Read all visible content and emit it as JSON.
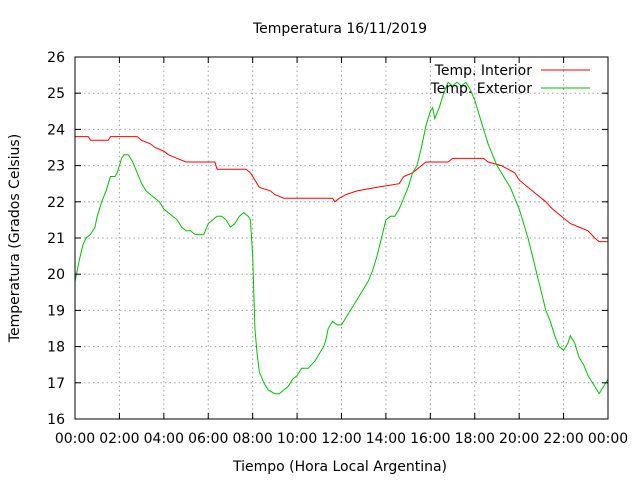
{
  "chart_data": {
    "type": "line",
    "title": "Temperatura 16/11/2019",
    "xlabel": "Tiempo (Hora Local Argentina)",
    "ylabel": "Temperatura (Grados Celsius)",
    "xlim": [
      0,
      24
    ],
    "ylim": [
      16,
      26
    ],
    "grid": true,
    "legend_position": "top-right",
    "x_ticks": [
      {
        "value": 0,
        "label": "00:00"
      },
      {
        "value": 2,
        "label": "02:00"
      },
      {
        "value": 4,
        "label": "04:00"
      },
      {
        "value": 6,
        "label": "06:00"
      },
      {
        "value": 8,
        "label": "08:00"
      },
      {
        "value": 10,
        "label": "10:00"
      },
      {
        "value": 12,
        "label": "12:00"
      },
      {
        "value": 14,
        "label": "14:00"
      },
      {
        "value": 16,
        "label": "16:00"
      },
      {
        "value": 18,
        "label": "18:00"
      },
      {
        "value": 20,
        "label": "20:00"
      },
      {
        "value": 22,
        "label": "22:00"
      },
      {
        "value": 24,
        "label": "00:00"
      }
    ],
    "y_ticks": [
      16,
      17,
      18,
      19,
      20,
      21,
      22,
      23,
      24,
      25,
      26
    ],
    "series": [
      {
        "name": "Temp. Interior",
        "color": "#ff0000",
        "points": [
          [
            0,
            23.8
          ],
          [
            0.6,
            23.8
          ],
          [
            0.7,
            23.7
          ],
          [
            1.5,
            23.7
          ],
          [
            1.6,
            23.8
          ],
          [
            2.8,
            23.8
          ],
          [
            3.0,
            23.7
          ],
          [
            3.4,
            23.6
          ],
          [
            3.6,
            23.5
          ],
          [
            4.0,
            23.4
          ],
          [
            4.2,
            23.3
          ],
          [
            4.6,
            23.2
          ],
          [
            5.0,
            23.1
          ],
          [
            6.3,
            23.1
          ],
          [
            6.4,
            22.9
          ],
          [
            7.7,
            22.9
          ],
          [
            7.9,
            22.8
          ],
          [
            8.1,
            22.6
          ],
          [
            8.3,
            22.4
          ],
          [
            8.8,
            22.3
          ],
          [
            9.0,
            22.2
          ],
          [
            9.4,
            22.1
          ],
          [
            11.6,
            22.1
          ],
          [
            11.7,
            22.0
          ],
          [
            11.9,
            22.1
          ],
          [
            12.2,
            22.2
          ],
          [
            12.7,
            22.3
          ],
          [
            13.6,
            22.4
          ],
          [
            14.6,
            22.5
          ],
          [
            14.8,
            22.7
          ],
          [
            15.2,
            22.8
          ],
          [
            15.6,
            23.0
          ],
          [
            15.8,
            23.1
          ],
          [
            16.8,
            23.1
          ],
          [
            17.0,
            23.2
          ],
          [
            18.4,
            23.2
          ],
          [
            18.6,
            23.1
          ],
          [
            19.2,
            23.0
          ],
          [
            19.5,
            22.9
          ],
          [
            19.8,
            22.8
          ],
          [
            20.0,
            22.6
          ],
          [
            20.4,
            22.4
          ],
          [
            20.8,
            22.2
          ],
          [
            21.2,
            22.0
          ],
          [
            21.5,
            21.8
          ],
          [
            21.9,
            21.6
          ],
          [
            22.3,
            21.4
          ],
          [
            22.7,
            21.3
          ],
          [
            23.1,
            21.2
          ],
          [
            23.4,
            21.0
          ],
          [
            23.6,
            20.9
          ],
          [
            24.0,
            20.9
          ]
        ]
      },
      {
        "name": "Temp. Exterior",
        "color": "#00c000",
        "points": [
          [
            0,
            19.8
          ],
          [
            0.1,
            20.1
          ],
          [
            0.2,
            20.4
          ],
          [
            0.35,
            20.8
          ],
          [
            0.5,
            21.0
          ],
          [
            0.7,
            21.1
          ],
          [
            0.9,
            21.3
          ],
          [
            1.0,
            21.6
          ],
          [
            1.2,
            22.0
          ],
          [
            1.4,
            22.3
          ],
          [
            1.5,
            22.5
          ],
          [
            1.6,
            22.7
          ],
          [
            1.8,
            22.7
          ],
          [
            1.9,
            22.8
          ],
          [
            2.0,
            23.0
          ],
          [
            2.1,
            23.2
          ],
          [
            2.2,
            23.3
          ],
          [
            2.4,
            23.3
          ],
          [
            2.6,
            23.1
          ],
          [
            2.8,
            22.8
          ],
          [
            3.0,
            22.5
          ],
          [
            3.2,
            22.3
          ],
          [
            3.4,
            22.2
          ],
          [
            3.6,
            22.1
          ],
          [
            3.8,
            22.0
          ],
          [
            4.0,
            21.8
          ],
          [
            4.2,
            21.7
          ],
          [
            4.4,
            21.6
          ],
          [
            4.6,
            21.5
          ],
          [
            4.8,
            21.3
          ],
          [
            5.0,
            21.2
          ],
          [
            5.2,
            21.2
          ],
          [
            5.4,
            21.1
          ],
          [
            5.6,
            21.1
          ],
          [
            5.8,
            21.1
          ],
          [
            6.0,
            21.4
          ],
          [
            6.2,
            21.5
          ],
          [
            6.4,
            21.6
          ],
          [
            6.6,
            21.6
          ],
          [
            6.8,
            21.5
          ],
          [
            7.0,
            21.3
          ],
          [
            7.2,
            21.4
          ],
          [
            7.4,
            21.6
          ],
          [
            7.6,
            21.7
          ],
          [
            7.8,
            21.6
          ],
          [
            7.9,
            21.5
          ],
          [
            8.0,
            20.5
          ],
          [
            8.05,
            19.5
          ],
          [
            8.1,
            18.5
          ],
          [
            8.2,
            17.8
          ],
          [
            8.3,
            17.3
          ],
          [
            8.5,
            17.0
          ],
          [
            8.7,
            16.8
          ],
          [
            9.0,
            16.7
          ],
          [
            9.2,
            16.7
          ],
          [
            9.4,
            16.8
          ],
          [
            9.6,
            16.9
          ],
          [
            9.8,
            17.1
          ],
          [
            10.0,
            17.2
          ],
          [
            10.2,
            17.4
          ],
          [
            10.5,
            17.4
          ],
          [
            10.8,
            17.6
          ],
          [
            11.0,
            17.8
          ],
          [
            11.2,
            18.0
          ],
          [
            11.3,
            18.2
          ],
          [
            11.4,
            18.5
          ],
          [
            11.6,
            18.7
          ],
          [
            11.8,
            18.6
          ],
          [
            12.0,
            18.6
          ],
          [
            12.2,
            18.8
          ],
          [
            12.4,
            19.0
          ],
          [
            12.6,
            19.2
          ],
          [
            12.8,
            19.4
          ],
          [
            13.0,
            19.6
          ],
          [
            13.2,
            19.8
          ],
          [
            13.4,
            20.1
          ],
          [
            13.6,
            20.5
          ],
          [
            13.8,
            21.0
          ],
          [
            14.0,
            21.5
          ],
          [
            14.2,
            21.6
          ],
          [
            14.4,
            21.6
          ],
          [
            14.6,
            21.8
          ],
          [
            14.8,
            22.1
          ],
          [
            15.0,
            22.4
          ],
          [
            15.2,
            22.8
          ],
          [
            15.4,
            23.0
          ],
          [
            15.6,
            23.5
          ],
          [
            15.8,
            24.1
          ],
          [
            16.0,
            24.5
          ],
          [
            16.1,
            24.6
          ],
          [
            16.2,
            24.3
          ],
          [
            16.4,
            24.6
          ],
          [
            16.6,
            25.0
          ],
          [
            16.8,
            25.3
          ],
          [
            17.0,
            25.2
          ],
          [
            17.2,
            25.3
          ],
          [
            17.4,
            25.2
          ],
          [
            17.6,
            25.3
          ],
          [
            17.8,
            25.1
          ],
          [
            18.0,
            24.8
          ],
          [
            18.2,
            24.4
          ],
          [
            18.4,
            24.0
          ],
          [
            18.6,
            23.6
          ],
          [
            18.8,
            23.3
          ],
          [
            19.0,
            23.0
          ],
          [
            19.2,
            22.8
          ],
          [
            19.4,
            22.6
          ],
          [
            19.6,
            22.4
          ],
          [
            19.8,
            22.1
          ],
          [
            20.0,
            21.8
          ],
          [
            20.2,
            21.4
          ],
          [
            20.4,
            21.0
          ],
          [
            20.6,
            20.5
          ],
          [
            20.8,
            20.0
          ],
          [
            21.0,
            19.5
          ],
          [
            21.2,
            19.0
          ],
          [
            21.4,
            18.7
          ],
          [
            21.6,
            18.3
          ],
          [
            21.8,
            18.0
          ],
          [
            22.0,
            17.9
          ],
          [
            22.2,
            18.1
          ],
          [
            22.3,
            18.3
          ],
          [
            22.5,
            18.1
          ],
          [
            22.7,
            17.7
          ],
          [
            22.9,
            17.5
          ],
          [
            23.1,
            17.2
          ],
          [
            23.3,
            17.0
          ],
          [
            23.5,
            16.8
          ],
          [
            23.6,
            16.7
          ],
          [
            23.8,
            16.9
          ],
          [
            24.0,
            17.1
          ]
        ]
      }
    ]
  }
}
